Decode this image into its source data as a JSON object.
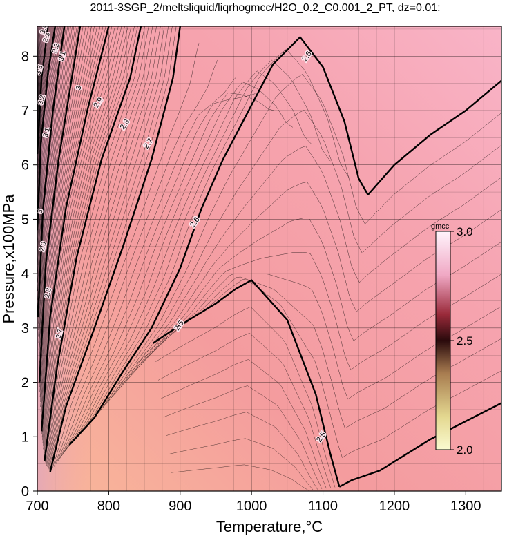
{
  "chart_data": {
    "type": "contour",
    "title": "2011-3SGP_2/meltsliquid/liqrhogmcc/H2O_0.2_C0.001_2_PT, dz=0.01:",
    "xlabel": "Temperature,°C",
    "ylabel": "Pressure,x100MPa",
    "xlim": [
      700,
      1350
    ],
    "ylim": [
      0,
      8.55
    ],
    "xticks": [
      700,
      800,
      900,
      1000,
      1100,
      1200,
      1300
    ],
    "yticks": [
      0,
      1,
      2,
      3,
      4,
      5,
      6,
      7,
      8
    ],
    "grid": true,
    "contour_interval": 0.01,
    "colorbar": {
      "unit": "gmcc",
      "range": [
        2.0,
        3.0
      ],
      "tick_labels": [
        "3.0",
        "2.5",
        "2.0"
      ],
      "tick_values": [
        3.0,
        2.5,
        2.0
      ],
      "placement": "right-inside"
    },
    "colors": {
      "low": "#f8f8c8",
      "mid": "#e84b4b",
      "high": "#f8d8f0",
      "background_field": "#f4a4a8"
    },
    "major_contours": [
      {
        "label": "2.5",
        "points": [
          [
            1123,
            0.08
          ],
          [
            1140,
            0.2
          ],
          [
            1180,
            0.38
          ],
          [
            1250,
            0.95
          ],
          [
            1350,
            1.62
          ]
        ]
      },
      {
        "label": "2.5",
        "points": [
          [
            862,
            2.72
          ],
          [
            900,
            3.05
          ],
          [
            950,
            3.45
          ],
          [
            978,
            3.72
          ],
          [
            1000,
            3.88
          ],
          [
            1050,
            3.15
          ],
          [
            1090,
            1.78
          ],
          [
            1110,
            0.7
          ],
          [
            1123,
            0.08
          ]
        ]
      },
      {
        "label": "2.6",
        "points": [
          [
            1163,
            5.45
          ],
          [
            1200,
            6.0
          ],
          [
            1250,
            6.55
          ],
          [
            1300,
            7.0
          ],
          [
            1350,
            7.55
          ]
        ]
      },
      {
        "label": "2.6",
        "points": [
          [
            745,
            0.85
          ],
          [
            780,
            1.35
          ],
          [
            820,
            2.2
          ],
          [
            860,
            3.0
          ],
          [
            900,
            4.1
          ],
          [
            930,
            5.2
          ],
          [
            960,
            6.1
          ],
          [
            1000,
            7.1
          ],
          [
            1030,
            7.85
          ],
          [
            1068,
            8.35
          ],
          [
            1100,
            7.8
          ],
          [
            1130,
            6.8
          ],
          [
            1150,
            5.75
          ],
          [
            1163,
            5.45
          ]
        ]
      },
      {
        "label": "2.7",
        "points": [
          [
            718,
            0.35
          ],
          [
            740,
            1.55
          ],
          [
            780,
            3.0
          ],
          [
            820,
            4.5
          ],
          [
            860,
            6.1
          ],
          [
            890,
            7.6
          ],
          [
            900,
            8.55
          ]
        ]
      },
      {
        "label": "2.8",
        "points": [
          [
            710,
            0.55
          ],
          [
            728,
            2.3
          ],
          [
            755,
            4.3
          ],
          [
            790,
            6.1
          ],
          [
            830,
            7.6
          ],
          [
            845,
            8.55
          ]
        ]
      },
      {
        "label": "2.9",
        "points": [
          [
            706,
            1.1
          ],
          [
            718,
            3.2
          ],
          [
            740,
            5.2
          ],
          [
            770,
            7.0
          ],
          [
            800,
            8.55
          ]
        ]
      },
      {
        "label": "3.0",
        "points": [
          [
            703,
            2.0
          ],
          [
            712,
            4.2
          ],
          [
            730,
            6.1
          ],
          [
            760,
            8.55
          ]
        ]
      },
      {
        "label": "3.1",
        "points": [
          [
            701,
            3.2
          ],
          [
            708,
            5.2
          ],
          [
            722,
            7.0
          ],
          [
            738,
            8.55
          ]
        ]
      },
      {
        "label": "3.2",
        "points": [
          [
            700,
            4.8
          ],
          [
            705,
            6.4
          ],
          [
            715,
            7.7
          ],
          [
            725,
            8.55
          ]
        ]
      },
      {
        "label": "3.3",
        "points": [
          [
            700,
            6.2
          ],
          [
            706,
            7.6
          ],
          [
            715,
            8.55
          ]
        ]
      }
    ],
    "contour_labels": [
      {
        "text": "2.5",
        "x": 1097,
        "y": 1.0
      },
      {
        "text": "2.5",
        "x": 898,
        "y": 3.05
      },
      {
        "text": "2.6",
        "x": 1077,
        "y": 8.0
      },
      {
        "text": "2.6",
        "x": 920,
        "y": 4.95
      },
      {
        "text": "2.7",
        "x": 855,
        "y": 6.4
      },
      {
        "text": "2.7",
        "x": 730,
        "y": 2.9
      },
      {
        "text": "2.8",
        "x": 822,
        "y": 6.75
      },
      {
        "text": "2.8",
        "x": 714,
        "y": 3.65
      },
      {
        "text": "2.9",
        "x": 785,
        "y": 7.15
      },
      {
        "text": "2.9",
        "x": 707,
        "y": 4.5
      },
      {
        "text": "3",
        "x": 757,
        "y": 7.42
      },
      {
        "text": "3",
        "x": 703,
        "y": 5.15
      },
      {
        "text": "3.1",
        "x": 734,
        "y": 8.0
      },
      {
        "text": "3.1",
        "x": 712,
        "y": 6.6
      },
      {
        "text": "3.2",
        "x": 725,
        "y": 8.15
      },
      {
        "text": "3.2",
        "x": 705,
        "y": 7.2
      },
      {
        "text": "3.3",
        "x": 712,
        "y": 8.35
      },
      {
        "text": "3.3",
        "x": 702,
        "y": 7.75
      },
      {
        "text": "3.4",
        "x": 708,
        "y": 8.5
      }
    ]
  }
}
